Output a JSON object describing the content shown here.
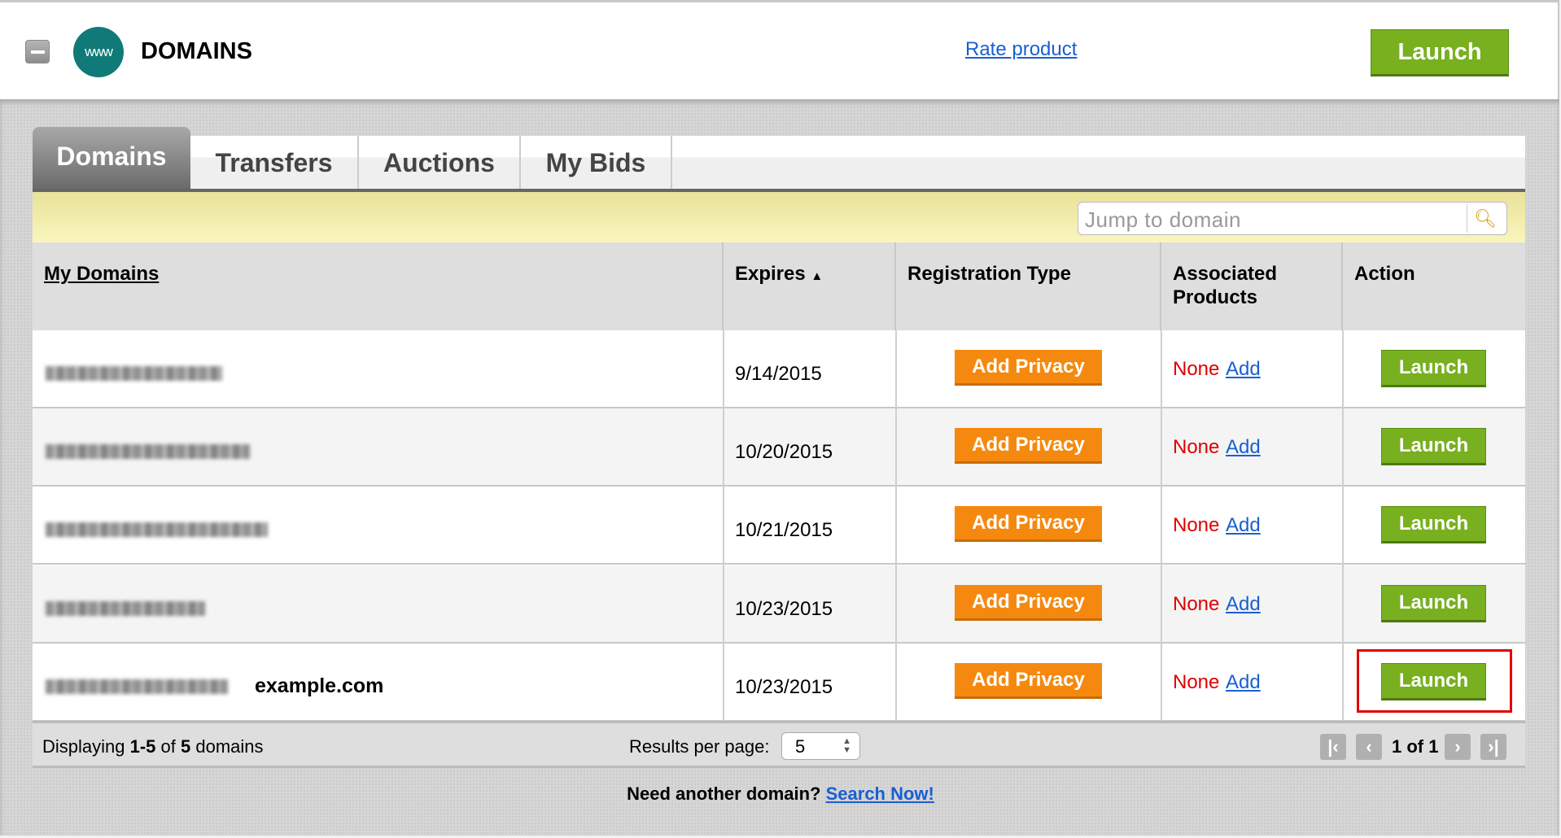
{
  "header": {
    "title": "DOMAINS",
    "logo_text": "www",
    "rate_link": "Rate product",
    "launch_label": "Launch"
  },
  "tabs": [
    {
      "label": "Domains",
      "active": true
    },
    {
      "label": "Transfers"
    },
    {
      "label": "Auctions"
    },
    {
      "label": "My Bids"
    }
  ],
  "search": {
    "placeholder": "Jump to domain",
    "icon": "search-icon"
  },
  "table": {
    "columns": [
      "My Domains",
      "Expires",
      "Registration Type",
      "Associated Products",
      "Action"
    ],
    "sort_indicator": "▲",
    "rows": [
      {
        "domain_label": "",
        "expires": "9/14/2015",
        "registration": "Add Privacy",
        "products": "None",
        "add": "Add",
        "action": "Launch"
      },
      {
        "domain_label": "",
        "expires": "10/20/2015",
        "registration": "Add Privacy",
        "products": "None",
        "add": "Add",
        "action": "Launch"
      },
      {
        "domain_label": "",
        "expires": "10/21/2015",
        "registration": "Add Privacy",
        "products": "None",
        "add": "Add",
        "action": "Launch"
      },
      {
        "domain_label": "",
        "expires": "10/23/2015",
        "registration": "Add Privacy",
        "products": "None",
        "add": "Add",
        "action": "Launch"
      },
      {
        "domain_label": "example.com",
        "expires": "10/23/2015",
        "registration": "Add Privacy",
        "products": "None",
        "add": "Add",
        "action": "Launch",
        "highlighted": true
      }
    ]
  },
  "footer": {
    "displaying_prefix": "Displaying ",
    "range": "1-5",
    "of": " of ",
    "total": "5",
    "suffix": " domains",
    "per_page_label": "Results per page:",
    "per_page_value": "5",
    "page_info": "1 of 1"
  },
  "bottom": {
    "text": "Need another domain? ",
    "link": "Search Now!"
  },
  "colors": {
    "launch": "#78b020",
    "privacy": "#f5890f",
    "none": "#e00000",
    "link": "#1a5fd1",
    "highlight": "#e00000"
  }
}
